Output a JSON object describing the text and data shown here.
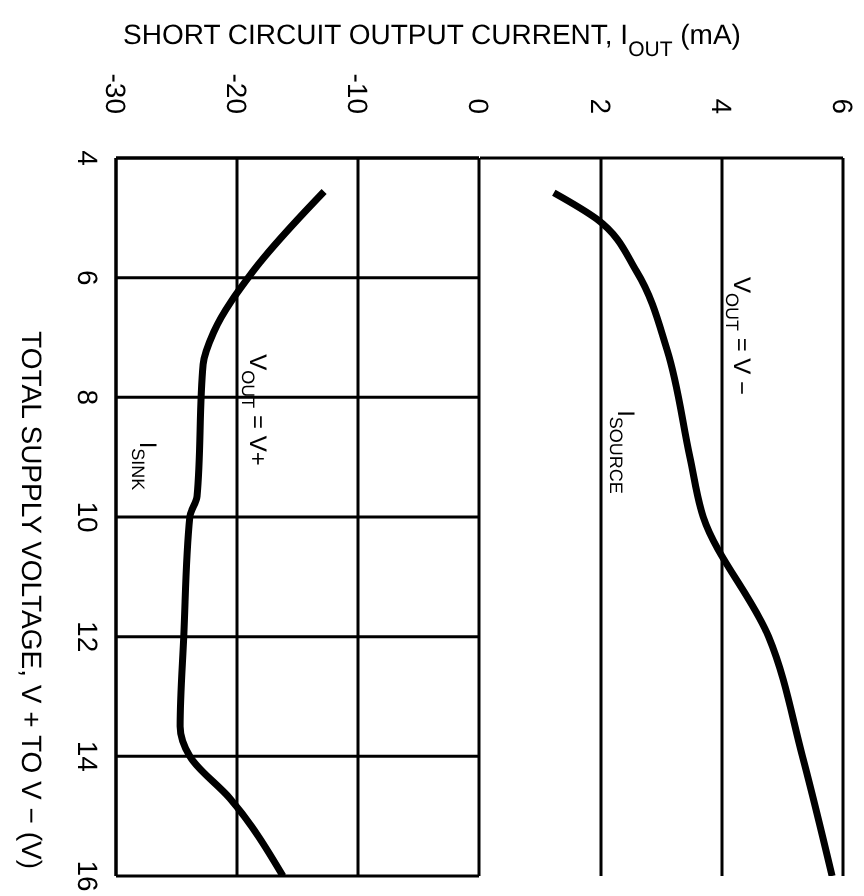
{
  "chart_data": [
    {
      "type": "line",
      "xlabel": "SHORT CIRCUIT OUTPUT CURRENT, I$_{OUT}$ (mA)",
      "ylabel": "TOTAL SUPPLY VOLTAGE, V + TO V − (V)",
      "xlim": [
        -30,
        0
      ],
      "xticks": [
        -30,
        -20,
        -10,
        0
      ],
      "ylim": [
        16,
        4
      ],
      "yticks": [
        4,
        6,
        8,
        10,
        12,
        14,
        16
      ],
      "grid": true,
      "marker": "none",
      "line_style": "solid",
      "series": [
        {
          "color": "#000000",
          "x": [
            -12.8,
            -18.7,
            -21.9,
            -22.8,
            -23.3,
            -23.9,
            -24.4,
            -24.7,
            -23.9,
            -20.6,
            -16.2
          ],
          "values": [
            4.56,
            5.9,
            6.9,
            7.45,
            9.65,
            10,
            12,
            13.5,
            14,
            14.7,
            16
          ]
        }
      ],
      "annotations": [
        "V$_{OUT}$ = V+",
        "I$_{SINK}$"
      ]
    },
    {
      "type": "line",
      "xlim": [
        0,
        6
      ],
      "xticks": [
        2,
        4,
        6
      ],
      "ylim": [
        16,
        4
      ],
      "yticks": [
        4,
        6,
        8,
        10,
        12,
        14,
        16
      ],
      "grid": true,
      "marker": "none",
      "line_style": "solid",
      "tick_labels": "x",
      "series": [
        {
          "color": "#000000",
          "x": [
            1.22,
            1.93,
            2.59,
            3.09,
            3.47,
            3.69,
            4.77,
            5.33,
            5.82
          ],
          "values": [
            4.58,
            5.02,
            5.9,
            7.2,
            9,
            10,
            12,
            14,
            16
          ]
        }
      ],
      "annotations": [
        "I$_{SOURCE}$",
        "V$_{OUT}$ = V −"
      ]
    }
  ]
}
